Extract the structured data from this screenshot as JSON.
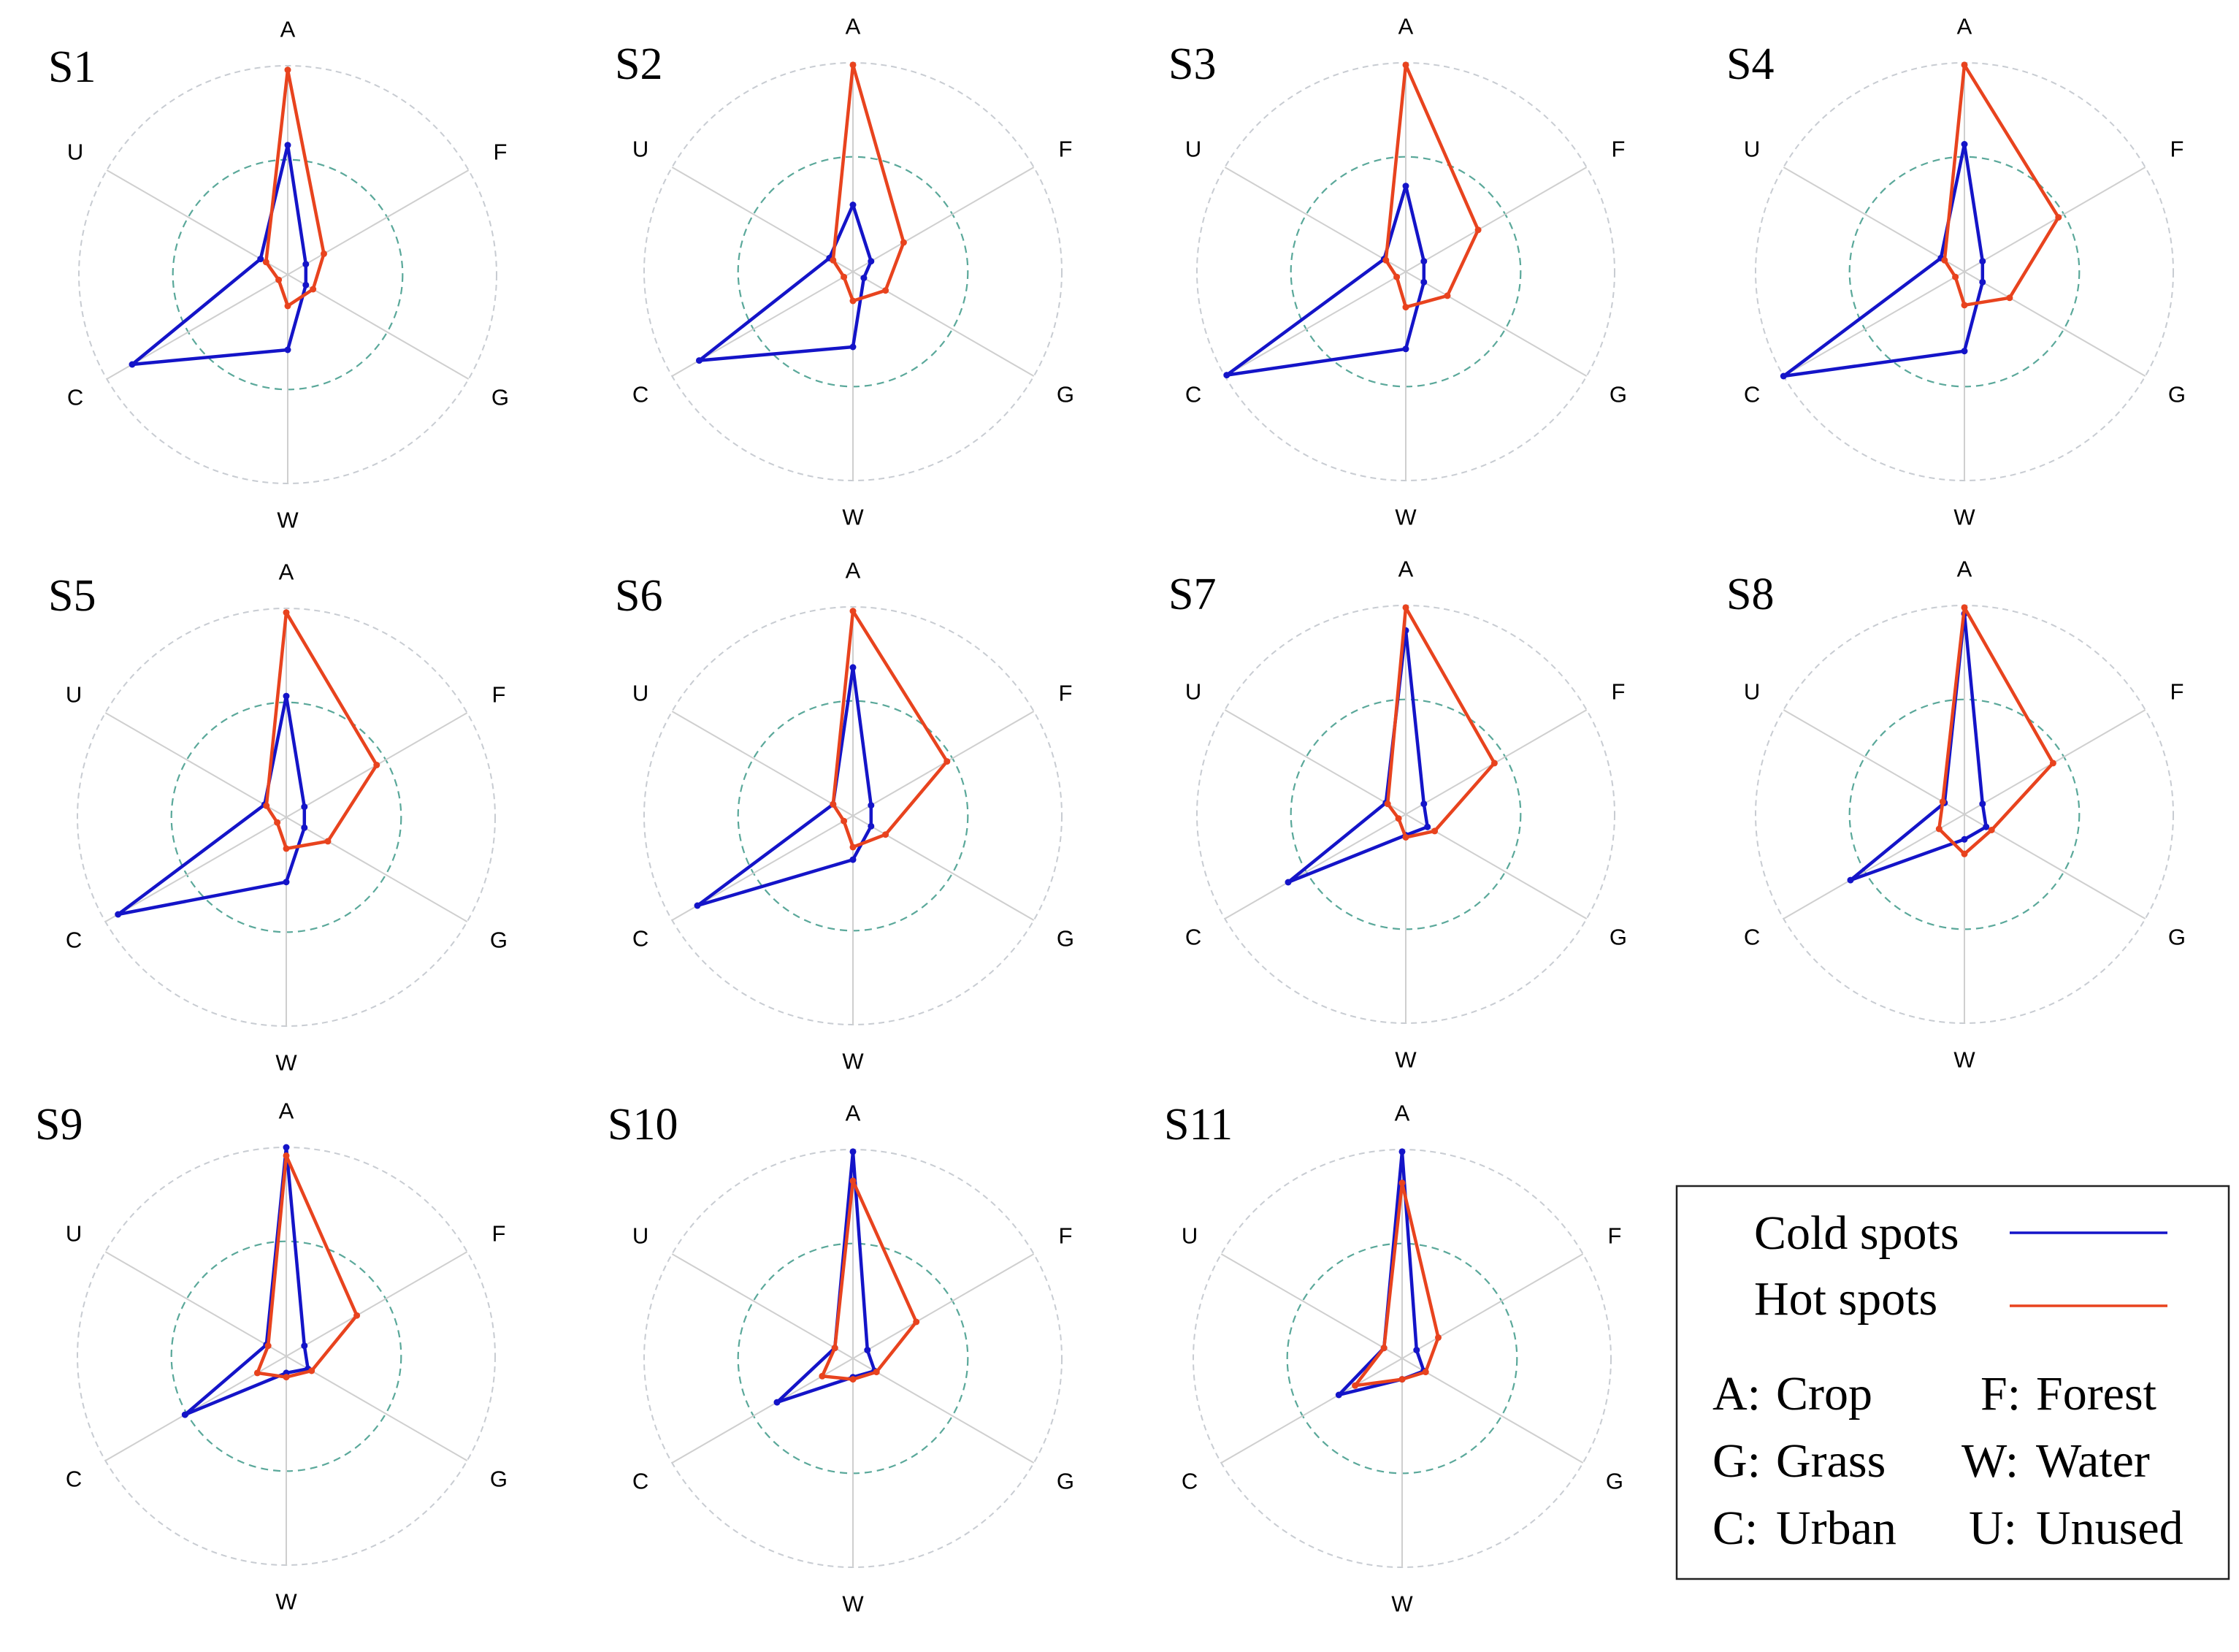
{
  "figure": {
    "axes": [
      {
        "key": "A",
        "label": "A"
      },
      {
        "key": "F",
        "label": "F"
      },
      {
        "key": "G",
        "label": "G"
      },
      {
        "key": "W",
        "label": "W"
      },
      {
        "key": "C",
        "label": "C"
      },
      {
        "key": "U",
        "label": "U"
      }
    ],
    "legend": {
      "series": [
        {
          "label": "Cold spots",
          "color": "#1414c8"
        },
        {
          "label": "Hot spots",
          "color": "#e8431e"
        }
      ],
      "abbreviations": [
        {
          "code": "A:",
          "name": "Crop"
        },
        {
          "code": "F:",
          "name": "Forest"
        },
        {
          "code": "G:",
          "name": "Grass"
        },
        {
          "code": "W:",
          "name": "Water"
        },
        {
          "code": "C:",
          "name": "Urban"
        },
        {
          "code": "U:",
          "name": "Unused"
        }
      ]
    }
  },
  "chart_data": [
    {
      "type": "radar",
      "title": "S1",
      "axes": [
        "A",
        "F",
        "G",
        "W",
        "C",
        "U"
      ],
      "rlim": [
        0,
        1
      ],
      "grid_levels": [
        0.55,
        1.0
      ],
      "series": [
        {
          "name": "Cold spots",
          "color": "#1414c8",
          "values": [
            0.62,
            0.1,
            0.1,
            0.36,
            0.86,
            0.15
          ]
        },
        {
          "name": "Hot spots",
          "color": "#e8431e",
          "values": [
            0.98,
            0.2,
            0.14,
            0.15,
            0.05,
            0.12
          ]
        }
      ]
    },
    {
      "type": "radar",
      "title": "S2",
      "axes": [
        "A",
        "F",
        "G",
        "W",
        "C",
        "U"
      ],
      "rlim": [
        0,
        1
      ],
      "grid_levels": [
        0.55,
        1.0
      ],
      "series": [
        {
          "name": "Cold spots",
          "color": "#1414c8",
          "values": [
            0.32,
            0.1,
            0.06,
            0.36,
            0.85,
            0.13
          ]
        },
        {
          "name": "Hot spots",
          "color": "#e8431e",
          "values": [
            0.99,
            0.28,
            0.18,
            0.14,
            0.05,
            0.11
          ]
        }
      ]
    },
    {
      "type": "radar",
      "title": "S3",
      "axes": [
        "A",
        "F",
        "G",
        "W",
        "C",
        "U"
      ],
      "rlim": [
        0,
        1
      ],
      "grid_levels": [
        0.55,
        1.0
      ],
      "series": [
        {
          "name": "Cold spots",
          "color": "#1414c8",
          "values": [
            0.41,
            0.1,
            0.1,
            0.37,
            0.99,
            0.12
          ]
        },
        {
          "name": "Hot spots",
          "color": "#e8431e",
          "values": [
            0.99,
            0.4,
            0.23,
            0.17,
            0.05,
            0.11
          ]
        }
      ]
    },
    {
      "type": "radar",
      "title": "S4",
      "axes": [
        "A",
        "F",
        "G",
        "W",
        "C",
        "U"
      ],
      "rlim": [
        0,
        1
      ],
      "grid_levels": [
        0.55,
        1.0
      ],
      "series": [
        {
          "name": "Cold spots",
          "color": "#1414c8",
          "values": [
            0.61,
            0.1,
            0.1,
            0.38,
            1.0,
            0.13
          ]
        },
        {
          "name": "Hot spots",
          "color": "#e8431e",
          "values": [
            0.99,
            0.52,
            0.25,
            0.16,
            0.05,
            0.11
          ]
        }
      ]
    },
    {
      "type": "radar",
      "title": "S5",
      "axes": [
        "A",
        "F",
        "G",
        "W",
        "C",
        "U"
      ],
      "rlim": [
        0,
        1
      ],
      "grid_levels": [
        0.55,
        1.0
      ],
      "series": [
        {
          "name": "Cold spots",
          "color": "#1414c8",
          "values": [
            0.58,
            0.1,
            0.1,
            0.31,
            0.93,
            0.12
          ]
        },
        {
          "name": "Hot spots",
          "color": "#e8431e",
          "values": [
            0.98,
            0.5,
            0.23,
            0.15,
            0.05,
            0.11
          ]
        }
      ]
    },
    {
      "type": "radar",
      "title": "S6",
      "axes": [
        "A",
        "F",
        "G",
        "W",
        "C",
        "U"
      ],
      "rlim": [
        0,
        1
      ],
      "grid_levels": [
        0.55,
        1.0
      ],
      "series": [
        {
          "name": "Cold spots",
          "color": "#1414c8",
          "values": [
            0.71,
            0.1,
            0.1,
            0.21,
            0.86,
            0.11
          ]
        },
        {
          "name": "Hot spots",
          "color": "#e8431e",
          "values": [
            0.98,
            0.52,
            0.18,
            0.15,
            0.05,
            0.11
          ]
        }
      ]
    },
    {
      "type": "radar",
      "title": "S7",
      "axes": [
        "A",
        "F",
        "G",
        "W",
        "C",
        "U"
      ],
      "rlim": [
        0,
        1
      ],
      "grid_levels": [
        0.55,
        1.0
      ],
      "series": [
        {
          "name": "Cold spots",
          "color": "#1414c8",
          "values": [
            0.88,
            0.1,
            0.12,
            0.1,
            0.65,
            0.11
          ]
        },
        {
          "name": "Hot spots",
          "color": "#e8431e",
          "values": [
            0.99,
            0.49,
            0.16,
            0.11,
            0.04,
            0.1
          ]
        }
      ]
    },
    {
      "type": "radar",
      "title": "S8",
      "axes": [
        "A",
        "F",
        "G",
        "W",
        "C",
        "U"
      ],
      "rlim": [
        0,
        1
      ],
      "grid_levels": [
        0.55,
        1.0
      ],
      "series": [
        {
          "name": "Cold spots",
          "color": "#1414c8",
          "values": [
            0.96,
            0.1,
            0.12,
            0.12,
            0.63,
            0.11
          ]
        },
        {
          "name": "Hot spots",
          "color": "#e8431e",
          "values": [
            0.99,
            0.49,
            0.15,
            0.19,
            0.14,
            0.12
          ]
        }
      ]
    },
    {
      "type": "radar",
      "title": "S9",
      "axes": [
        "A",
        "F",
        "G",
        "W",
        "C",
        "U"
      ],
      "rlim": [
        0,
        1
      ],
      "grid_levels": [
        0.55,
        1.0
      ],
      "series": [
        {
          "name": "Cold spots",
          "color": "#1414c8",
          "values": [
            1.0,
            0.1,
            0.12,
            0.08,
            0.56,
            0.11
          ]
        },
        {
          "name": "Hot spots",
          "color": "#e8431e",
          "values": [
            0.96,
            0.39,
            0.14,
            0.1,
            0.16,
            0.1
          ]
        }
      ]
    },
    {
      "type": "radar",
      "title": "S10",
      "axes": [
        "A",
        "F",
        "G",
        "W",
        "C",
        "U"
      ],
      "rlim": [
        0,
        1
      ],
      "grid_levels": [
        0.55,
        1.0
      ],
      "series": [
        {
          "name": "Cold spots",
          "color": "#1414c8",
          "values": [
            0.99,
            0.08,
            0.12,
            0.09,
            0.42,
            0.1
          ]
        },
        {
          "name": "Hot spots",
          "color": "#e8431e",
          "values": [
            0.85,
            0.35,
            0.13,
            0.1,
            0.17,
            0.1
          ]
        }
      ]
    },
    {
      "type": "radar",
      "title": "S11",
      "axes": [
        "A",
        "F",
        "G",
        "W",
        "C",
        "U"
      ],
      "rlim": [
        0,
        1
      ],
      "grid_levels": [
        0.55,
        1.0
      ],
      "series": [
        {
          "name": "Cold spots",
          "color": "#1414c8",
          "values": [
            0.99,
            0.08,
            0.12,
            0.1,
            0.35,
            0.1
          ]
        },
        {
          "name": "Hot spots",
          "color": "#e8431e",
          "values": [
            0.84,
            0.2,
            0.13,
            0.1,
            0.26,
            0.1
          ]
        }
      ]
    }
  ]
}
